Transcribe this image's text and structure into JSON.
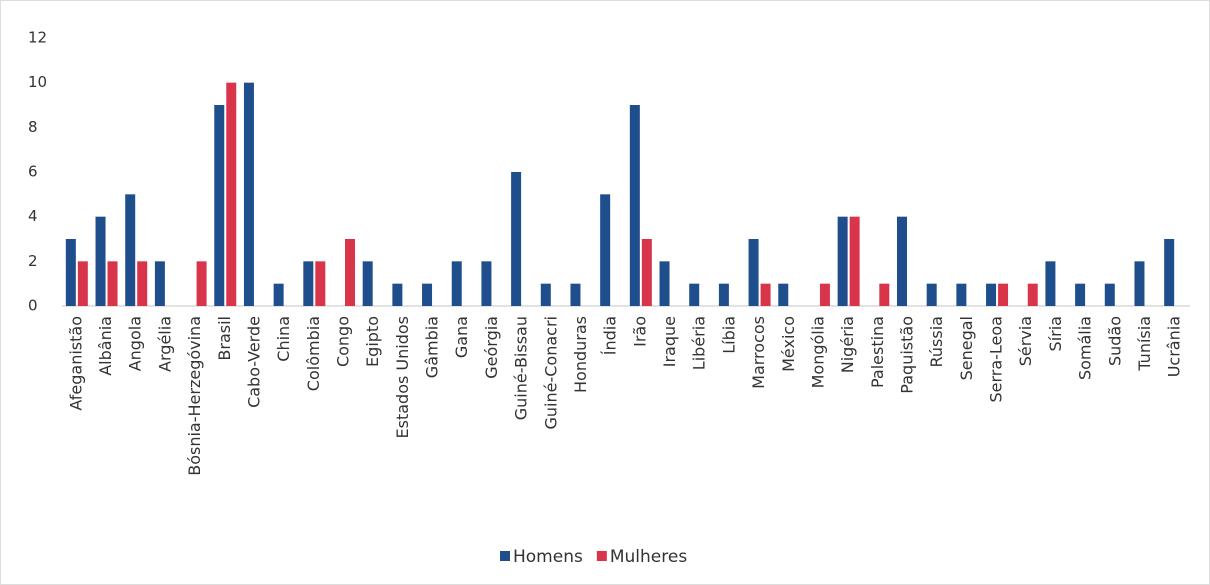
{
  "chart_data": {
    "type": "bar",
    "categories": [
      "Afeganistão",
      "Albânia",
      "Angola",
      "Argélia",
      "Bósnia-Herzegóvina",
      "Brasil",
      "Cabo-Verde",
      "China",
      "Colômbia",
      "Congo",
      "Egipto",
      "Estados Unidos",
      "Gâmbia",
      "Gana",
      "Geórgia",
      "Guiné-Bissau",
      "Guiné-Conacri",
      "Honduras",
      "Índia",
      "Irão",
      "Iraque",
      "Libéria",
      "Líbia",
      "Marrocos",
      "México",
      "Mongólia",
      "Nigéria",
      "Palestina",
      "Paquistão",
      "Rússia",
      "Senegal",
      "Serra-Leoa",
      "Sérvia",
      "Síria",
      "Somália",
      "Sudão",
      "Tunísia",
      "Ucrânia"
    ],
    "series": [
      {
        "name": "Homens",
        "color": "#1f4e8c",
        "values": [
          3,
          4,
          5,
          2,
          0,
          9,
          10,
          1,
          2,
          0,
          2,
          1,
          1,
          2,
          2,
          6,
          1,
          1,
          5,
          9,
          2,
          1,
          1,
          3,
          1,
          0,
          4,
          0,
          4,
          1,
          1,
          1,
          0,
          2,
          1,
          1,
          2,
          3
        ]
      },
      {
        "name": "Mulheres",
        "color": "#d9354a",
        "values": [
          2,
          2,
          2,
          0,
          2,
          10,
          0,
          0,
          2,
          3,
          0,
          0,
          0,
          0,
          0,
          0,
          0,
          0,
          0,
          3,
          0,
          0,
          0,
          1,
          0,
          1,
          4,
          1,
          0,
          0,
          0,
          1,
          1,
          0,
          0,
          0,
          0,
          0
        ]
      }
    ],
    "ylim": [
      0,
      12
    ],
    "yticks": [
      0,
      2,
      4,
      6,
      8,
      10,
      12
    ],
    "grid": false,
    "legend": "bottom"
  }
}
